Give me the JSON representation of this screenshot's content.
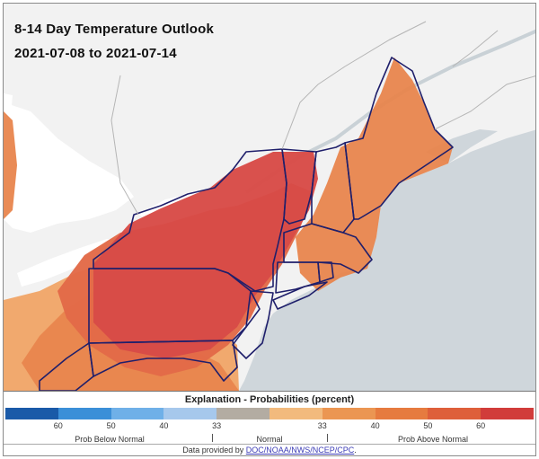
{
  "map": {
    "title": "8-14 Day Temperature Outlook",
    "date_range": "2021-07-08 to 2021-07-14",
    "colors": {
      "water": "#cfd6db",
      "land": "#f2f2f2",
      "border": "#b8b8b8",
      "state_line": "#1f1f6b",
      "prob_33_40": "#f0a466",
      "prob_40_50": "#e8854d",
      "prob_50_60": "#e26a48",
      "prob_60_plus": "#d84b47"
    }
  },
  "legend": {
    "title": "Explanation - Probabilities (percent)",
    "swatch_colors": [
      "#1a5aa8",
      "#3b8fd8",
      "#6fb0e8",
      "#a6c8ec",
      "#b3aca2",
      "#f2ba7d",
      "#eb9652",
      "#e67b3f",
      "#de5f3a",
      "#d13c3a"
    ],
    "ticks": [
      "60",
      "50",
      "40",
      "33",
      "33",
      "40",
      "50",
      "60"
    ],
    "below_label": "Prob Below Normal",
    "normal_label": "Normal",
    "above_label": "Prob Above Normal",
    "source_prefix": "Data provided by ",
    "source_link": "DOC/NOAA/NWS/NCEP/CPC",
    "source_suffix": "."
  }
}
